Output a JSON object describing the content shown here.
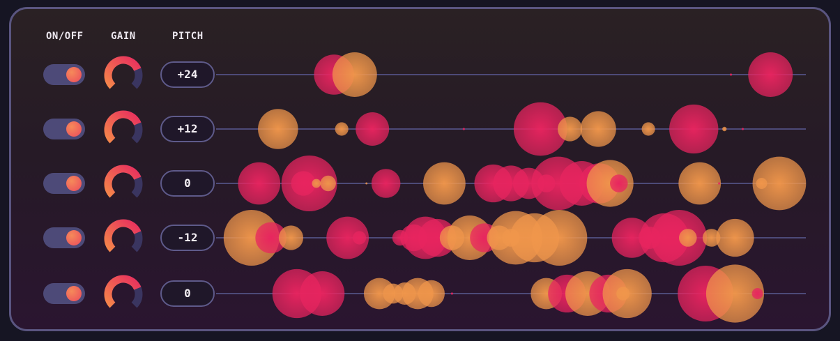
{
  "headers": {
    "on_off": "ON/OFF",
    "gain": "GAIN",
    "pitch": "PITCH"
  },
  "colors": {
    "pink": "#e8245f",
    "orange": "#f0964b",
    "track": "#4d4a78",
    "border": "#5a5580"
  },
  "tracks": [
    {
      "enabled": true,
      "pitch": "+24",
      "gain": 0.75,
      "bubbles": [
        {
          "pos": 0.2,
          "size": 0.9,
          "color": "pink"
        },
        {
          "pos": 0.235,
          "size": 1.0,
          "color": "orange"
        },
        {
          "pos": 0.873,
          "size": 0.05,
          "color": "pink"
        },
        {
          "pos": 0.94,
          "size": 1.0,
          "color": "pink"
        }
      ]
    },
    {
      "enabled": true,
      "pitch": "+12",
      "gain": 0.75,
      "bubbles": [
        {
          "pos": 0.105,
          "size": 0.9,
          "color": "orange"
        },
        {
          "pos": 0.213,
          "size": 0.3,
          "color": "orange"
        },
        {
          "pos": 0.265,
          "size": 0.75,
          "color": "pink"
        },
        {
          "pos": 0.42,
          "size": 0.05,
          "color": "pink"
        },
        {
          "pos": 0.55,
          "size": 1.2,
          "color": "pink"
        },
        {
          "pos": 0.6,
          "size": 0.55,
          "color": "orange"
        },
        {
          "pos": 0.648,
          "size": 0.8,
          "color": "orange"
        },
        {
          "pos": 0.733,
          "size": 0.3,
          "color": "orange"
        },
        {
          "pos": 0.81,
          "size": 1.1,
          "color": "pink"
        },
        {
          "pos": 0.862,
          "size": 0.1,
          "color": "orange"
        },
        {
          "pos": 0.893,
          "size": 0.05,
          "color": "pink"
        }
      ]
    },
    {
      "enabled": true,
      "pitch": "0",
      "gain": 0.75,
      "bubbles": [
        {
          "pos": 0.073,
          "size": 0.95,
          "color": "pink"
        },
        {
          "pos": 0.158,
          "size": 1.25,
          "color": "pink"
        },
        {
          "pos": 0.148,
          "size": 0.55,
          "color": "pink"
        },
        {
          "pos": 0.17,
          "size": 0.2,
          "color": "orange"
        },
        {
          "pos": 0.19,
          "size": 0.35,
          "color": "orange"
        },
        {
          "pos": 0.255,
          "size": 0.02,
          "color": "orange"
        },
        {
          "pos": 0.288,
          "size": 0.65,
          "color": "pink"
        },
        {
          "pos": 0.387,
          "size": 0.95,
          "color": "orange"
        },
        {
          "pos": 0.47,
          "size": 0.85,
          "color": "pink"
        },
        {
          "pos": 0.5,
          "size": 0.8,
          "color": "pink"
        },
        {
          "pos": 0.53,
          "size": 0.7,
          "color": "pink"
        },
        {
          "pos": 0.56,
          "size": 0.4,
          "color": "pink"
        },
        {
          "pos": 0.58,
          "size": 1.2,
          "color": "pink"
        },
        {
          "pos": 0.62,
          "size": 1.0,
          "color": "pink"
        },
        {
          "pos": 0.65,
          "size": 0.9,
          "color": "pink"
        },
        {
          "pos": 0.668,
          "size": 1.05,
          "color": "orange"
        },
        {
          "pos": 0.683,
          "size": 0.4,
          "color": "pink"
        },
        {
          "pos": 0.82,
          "size": 0.95,
          "color": "orange"
        },
        {
          "pos": 0.853,
          "size": 0.05,
          "color": "pink"
        },
        {
          "pos": 0.925,
          "size": 0.25,
          "color": "orange"
        },
        {
          "pos": 0.955,
          "size": 1.2,
          "color": "orange"
        }
      ]
    },
    {
      "enabled": true,
      "pitch": "-12",
      "gain": 0.75,
      "bubbles": [
        {
          "pos": 0.06,
          "size": 1.25,
          "color": "orange"
        },
        {
          "pos": 0.093,
          "size": 0.7,
          "color": "pink"
        },
        {
          "pos": 0.127,
          "size": 0.55,
          "color": "orange"
        },
        {
          "pos": 0.223,
          "size": 0.95,
          "color": "pink"
        },
        {
          "pos": 0.243,
          "size": 0.3,
          "color": "pink"
        },
        {
          "pos": 0.312,
          "size": 0.35,
          "color": "pink"
        },
        {
          "pos": 0.335,
          "size": 0.6,
          "color": "pink"
        },
        {
          "pos": 0.355,
          "size": 0.95,
          "color": "pink"
        },
        {
          "pos": 0.375,
          "size": 0.85,
          "color": "pink"
        },
        {
          "pos": 0.4,
          "size": 0.55,
          "color": "orange"
        },
        {
          "pos": 0.43,
          "size": 1.0,
          "color": "orange"
        },
        {
          "pos": 0.455,
          "size": 0.65,
          "color": "pink"
        },
        {
          "pos": 0.48,
          "size": 0.55,
          "color": "orange"
        },
        {
          "pos": 0.5,
          "size": 0.4,
          "color": "orange"
        },
        {
          "pos": 0.508,
          "size": 1.2,
          "color": "orange"
        },
        {
          "pos": 0.54,
          "size": 1.1,
          "color": "orange"
        },
        {
          "pos": 0.582,
          "size": 1.25,
          "color": "orange"
        },
        {
          "pos": 0.705,
          "size": 0.9,
          "color": "pink"
        },
        {
          "pos": 0.735,
          "size": 0.5,
          "color": "pink"
        },
        {
          "pos": 0.76,
          "size": 1.1,
          "color": "pink"
        },
        {
          "pos": 0.785,
          "size": 1.25,
          "color": "pink"
        },
        {
          "pos": 0.8,
          "size": 0.4,
          "color": "orange"
        },
        {
          "pos": 0.84,
          "size": 0.4,
          "color": "orange"
        },
        {
          "pos": 0.88,
          "size": 0.85,
          "color": "orange"
        }
      ]
    },
    {
      "enabled": true,
      "pitch": "0",
      "gain": 0.75,
      "bubbles": [
        {
          "pos": 0.137,
          "size": 1.1,
          "color": "pink"
        },
        {
          "pos": 0.18,
          "size": 1.0,
          "color": "pink"
        },
        {
          "pos": 0.277,
          "size": 0.7,
          "color": "orange"
        },
        {
          "pos": 0.3,
          "size": 0.45,
          "color": "orange"
        },
        {
          "pos": 0.32,
          "size": 0.5,
          "color": "orange"
        },
        {
          "pos": 0.342,
          "size": 0.7,
          "color": "orange"
        },
        {
          "pos": 0.365,
          "size": 0.6,
          "color": "orange"
        },
        {
          "pos": 0.4,
          "size": 0.05,
          "color": "pink"
        },
        {
          "pos": 0.56,
          "size": 0.7,
          "color": "orange"
        },
        {
          "pos": 0.595,
          "size": 0.85,
          "color": "pink"
        },
        {
          "pos": 0.63,
          "size": 1.0,
          "color": "orange"
        },
        {
          "pos": 0.665,
          "size": 0.85,
          "color": "pink"
        },
        {
          "pos": 0.697,
          "size": 1.1,
          "color": "orange"
        },
        {
          "pos": 0.69,
          "size": 0.3,
          "color": "orange"
        },
        {
          "pos": 0.83,
          "size": 1.25,
          "color": "pink"
        },
        {
          "pos": 0.88,
          "size": 1.3,
          "color": "orange"
        },
        {
          "pos": 0.918,
          "size": 0.25,
          "color": "pink"
        }
      ]
    }
  ]
}
